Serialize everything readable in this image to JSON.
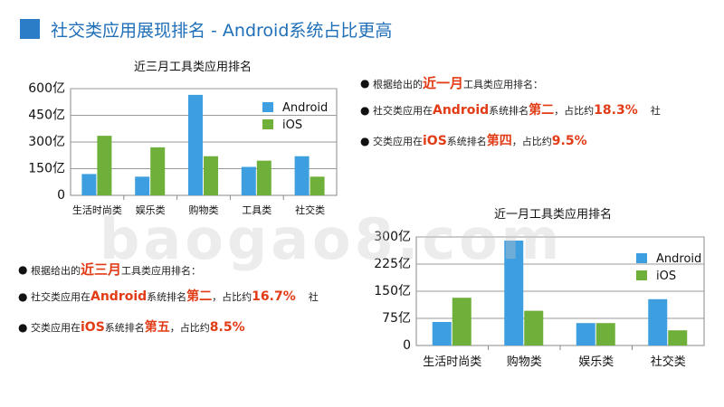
{
  "header": {
    "title": "社交类应用展现排名 - Android系统占比更高"
  },
  "watermark": "baogao8.com",
  "colors": {
    "android": "#3d9ee0",
    "ios": "#6fb03a",
    "accent": "#1f6fb8",
    "highlight": "#e23c17"
  },
  "chart_data": [
    {
      "type": "bar",
      "title": "近三月工具类应用排名",
      "categories": [
        "生活时尚类",
        "娱乐类",
        "购物类",
        "工具类",
        "社交类"
      ],
      "series": [
        {
          "name": "Android",
          "values": [
            120,
            105,
            565,
            160,
            220
          ]
        },
        {
          "name": "iOS",
          "values": [
            335,
            270,
            220,
            195,
            105
          ]
        }
      ],
      "ytick_labels": [
        "0",
        "150亿",
        "300亿",
        "450亿",
        "600亿"
      ],
      "ylim": [
        0,
        600
      ],
      "legend": "top-right"
    },
    {
      "type": "bar",
      "title": "近一月工具类应用排名",
      "categories": [
        "生活时尚类",
        "购物类",
        "娱乐类",
        "社交类"
      ],
      "series": [
        {
          "name": "Android",
          "values": [
            65,
            290,
            62,
            128
          ]
        },
        {
          "name": "iOS",
          "values": [
            132,
            96,
            62,
            42
          ]
        }
      ],
      "ytick_labels": [
        "0",
        "75亿",
        "150亿",
        "225亿",
        "300亿"
      ],
      "ylim": [
        0,
        300
      ],
      "legend": "top-right"
    }
  ],
  "notes_top": {
    "line1": {
      "pre": "根据给出的",
      "hl": "近一月",
      "post": "工具类应用排名："
    },
    "line2": {
      "pre": "社交类应用在",
      "hl1": "Android",
      "mid": "系统排名",
      "hl2": "第二",
      "post": "，占比约",
      "hl3": "18.3%",
      "tail": "社"
    },
    "line3": {
      "pre": "交类应用在",
      "hl1": "iOS",
      "mid": "系统排名",
      "hl2": "第四",
      "post": "，占比约",
      "hl3": "9.5%"
    }
  },
  "notes_bottom": {
    "line1": {
      "pre": "根据给出的",
      "hl": "近三月",
      "post": "工具类应用排名："
    },
    "line2": {
      "pre": "社交类应用在",
      "hl1": "Android",
      "mid": "系统排名",
      "hl2": "第二",
      "post": "，占比约",
      "hl3": "16.7%",
      "tail": "社"
    },
    "line3": {
      "pre": "交类应用在",
      "hl1": "iOS",
      "mid": "系统排名",
      "hl2": "第五",
      "post": "，占比约",
      "hl3": "8.5%"
    }
  }
}
